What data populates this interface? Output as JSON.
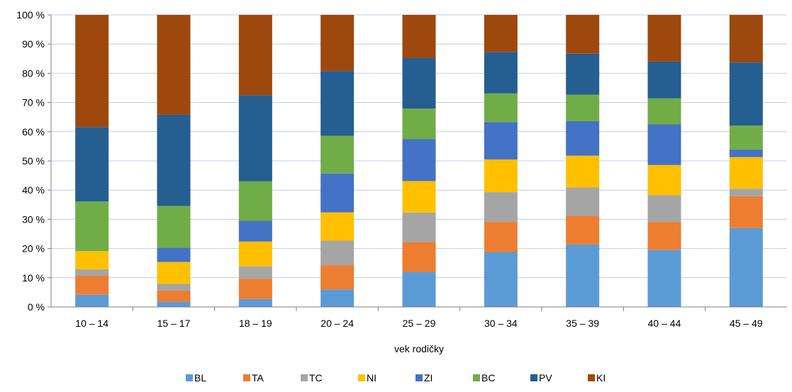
{
  "chart_data": {
    "type": "bar",
    "stacked": true,
    "percent_stacked": true,
    "title": "",
    "xlabel": "vek rodičky",
    "ylabel": "",
    "ylim": [
      0,
      100
    ],
    "y_ticks": [
      "0 %",
      "10 %",
      "20 %",
      "30 %",
      "40 %",
      "50 %",
      "60 %",
      "70 %",
      "80 %",
      "90 %",
      "100 %"
    ],
    "grid": true,
    "legend_position": "bottom",
    "categories": [
      "10 – 14",
      "15 – 17",
      "18 – 19",
      "20 – 24",
      "25 – 29",
      "30 – 34",
      "35 – 39",
      "40 – 44",
      "45 – 49"
    ],
    "series": [
      {
        "name": "BL",
        "color": "#5B9BD5",
        "values": [
          4.2,
          1.8,
          2.7,
          6.0,
          12.0,
          18.8,
          21.4,
          19.5,
          27.0
        ]
      },
      {
        "name": "TA",
        "color": "#ED7D31",
        "values": [
          6.5,
          3.8,
          7.0,
          8.3,
          10.2,
          10.3,
          9.8,
          9.6,
          10.9
        ]
      },
      {
        "name": "TC",
        "color": "#A5A5A5",
        "values": [
          2.2,
          2.3,
          4.2,
          8.4,
          10.1,
          10.2,
          9.7,
          9.2,
          2.6
        ]
      },
      {
        "name": "NI",
        "color": "#FFC000",
        "values": [
          6.2,
          7.5,
          8.5,
          9.7,
          10.8,
          11.2,
          10.9,
          10.3,
          10.8
        ]
      },
      {
        "name": "ZI",
        "color": "#4472C4",
        "values": [
          0,
          4.9,
          7.1,
          13.3,
          14.4,
          12.8,
          11.8,
          13.9,
          2.6
        ]
      },
      {
        "name": "BC",
        "color": "#70AD47",
        "values": [
          17.0,
          14.3,
          13.5,
          12.9,
          10.4,
          9.8,
          9.1,
          8.9,
          8.2
        ]
      },
      {
        "name": "PV",
        "color": "#255E91",
        "values": [
          25.5,
          31.2,
          29.5,
          22.2,
          17.3,
          14.2,
          14.0,
          12.6,
          21.6
        ]
      },
      {
        "name": "KI",
        "color": "#9E480E",
        "values": [
          38.4,
          34.2,
          27.5,
          19.2,
          14.8,
          12.7,
          13.3,
          16.0,
          16.3
        ]
      }
    ]
  }
}
